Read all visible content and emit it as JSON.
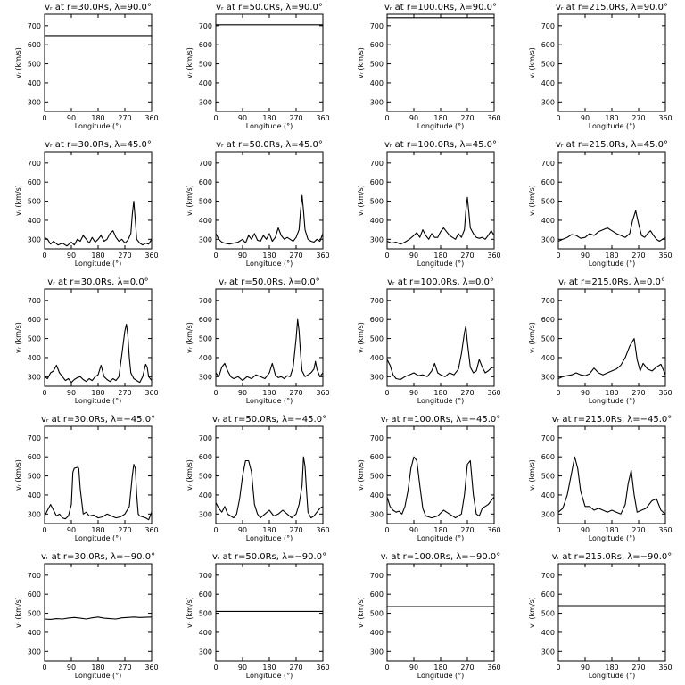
{
  "figure": {
    "x_ticks": [
      0,
      90,
      180,
      270,
      360
    ],
    "y_ticks": [
      300,
      400,
      500,
      600,
      700
    ],
    "xlabel": "Longitude (°)",
    "ylabel": "vᵣ (km/s)",
    "line_color": "#000000",
    "background": "#ffffff"
  },
  "chart_data": [
    {
      "type": "line",
      "title": "vᵣ at r=30.0Rs, λ=90.0°",
      "xlabel": "Longitude (°)",
      "ylabel": "vᵣ (km/s)",
      "xlim": [
        0,
        360
      ],
      "ylim": [
        250,
        760
      ],
      "x": [
        0,
        360
      ],
      "values": [
        648,
        648
      ]
    },
    {
      "type": "line",
      "title": "vᵣ at r=50.0Rs, λ=90.0°",
      "xlabel": "Longitude (°)",
      "ylabel": "vᵣ (km/s)",
      "xlim": [
        0,
        360
      ],
      "ylim": [
        250,
        760
      ],
      "x": [
        0,
        360
      ],
      "values": [
        705,
        705
      ]
    },
    {
      "type": "line",
      "title": "vᵣ at r=100.0Rs, λ=90.0°",
      "xlabel": "Longitude (°)",
      "ylabel": "vᵣ (km/s)",
      "xlim": [
        0,
        360
      ],
      "ylim": [
        250,
        760
      ],
      "x": [
        0,
        360
      ],
      "values": [
        742,
        742
      ]
    },
    {
      "type": "line",
      "title": "vᵣ at r=215.0Rs, λ=90.0°",
      "xlabel": "Longitude (°)",
      "ylabel": "vᵣ (km/s)",
      "xlim": [
        0,
        360
      ],
      "ylim": [
        250,
        760
      ],
      "x": [],
      "values": []
    },
    {
      "type": "line",
      "title": "vᵣ at r=30.0Rs, λ=45.0°",
      "xlabel": "Longitude (°)",
      "ylabel": "vᵣ (km/s)",
      "xlim": [
        0,
        360
      ],
      "ylim": [
        250,
        760
      ],
      "x": [
        0,
        10,
        20,
        30,
        45,
        60,
        75,
        90,
        100,
        110,
        120,
        130,
        140,
        150,
        160,
        170,
        180,
        190,
        200,
        210,
        220,
        230,
        240,
        250,
        260,
        270,
        280,
        290,
        295,
        300,
        305,
        310,
        320,
        330,
        340,
        350,
        360
      ],
      "values": [
        310,
        300,
        275,
        290,
        270,
        280,
        265,
        285,
        270,
        300,
        290,
        320,
        300,
        280,
        310,
        285,
        300,
        320,
        290,
        300,
        330,
        345,
        310,
        290,
        300,
        280,
        295,
        330,
        430,
        500,
        400,
        300,
        280,
        270,
        280,
        275,
        300
      ]
    },
    {
      "type": "line",
      "title": "vᵣ at r=50.0Rs, λ=45.0°",
      "xlabel": "Longitude (°)",
      "ylabel": "vᵣ (km/s)",
      "xlim": [
        0,
        360
      ],
      "ylim": [
        250,
        760
      ],
      "x": [
        0,
        10,
        20,
        30,
        45,
        60,
        75,
        90,
        100,
        110,
        120,
        130,
        140,
        150,
        160,
        170,
        180,
        190,
        200,
        210,
        220,
        230,
        240,
        250,
        260,
        270,
        280,
        285,
        290,
        295,
        300,
        310,
        320,
        330,
        340,
        350,
        360
      ],
      "values": [
        330,
        300,
        285,
        280,
        275,
        280,
        285,
        300,
        280,
        320,
        300,
        330,
        295,
        290,
        320,
        300,
        330,
        290,
        310,
        360,
        320,
        300,
        310,
        300,
        290,
        310,
        350,
        450,
        530,
        450,
        350,
        300,
        290,
        285,
        300,
        290,
        330
      ]
    },
    {
      "type": "line",
      "title": "vᵣ at r=100.0Rs, λ=45.0°",
      "xlabel": "Longitude (°)",
      "ylabel": "vᵣ (km/s)",
      "xlim": [
        0,
        360
      ],
      "ylim": [
        250,
        760
      ],
      "x": [
        0,
        15,
        30,
        45,
        60,
        75,
        90,
        100,
        110,
        120,
        130,
        140,
        150,
        160,
        170,
        180,
        190,
        200,
        210,
        220,
        230,
        240,
        250,
        260,
        265,
        270,
        275,
        280,
        290,
        300,
        310,
        320,
        330,
        340,
        350,
        360
      ],
      "values": [
        290,
        280,
        285,
        275,
        285,
        300,
        320,
        335,
        310,
        350,
        320,
        300,
        330,
        310,
        310,
        340,
        360,
        340,
        320,
        310,
        300,
        330,
        310,
        350,
        450,
        520,
        440,
        360,
        330,
        310,
        305,
        310,
        300,
        320,
        345,
        320
      ]
    },
    {
      "type": "line",
      "title": "vᵣ at r=215.0Rs, λ=45.0°",
      "xlabel": "Longitude (°)",
      "ylabel": "vᵣ (km/s)",
      "xlim": [
        0,
        360
      ],
      "ylim": [
        250,
        760
      ],
      "x": [
        0,
        15,
        30,
        45,
        60,
        75,
        90,
        105,
        120,
        135,
        150,
        165,
        180,
        195,
        210,
        225,
        240,
        250,
        260,
        270,
        280,
        290,
        300,
        310,
        320,
        330,
        340,
        350,
        360
      ],
      "values": [
        290,
        300,
        310,
        325,
        320,
        305,
        310,
        330,
        320,
        340,
        350,
        360,
        345,
        330,
        320,
        310,
        330,
        400,
        450,
        380,
        320,
        310,
        330,
        345,
        320,
        300,
        290,
        300,
        310
      ]
    },
    {
      "type": "line",
      "title": "vᵣ at r=30.0Rs, λ=0.0°",
      "xlabel": "Longitude (°)",
      "ylabel": "vᵣ (km/s)",
      "xlim": [
        0,
        360
      ],
      "ylim": [
        250,
        760
      ],
      "x": [
        0,
        10,
        20,
        30,
        40,
        50,
        60,
        70,
        80,
        90,
        100,
        110,
        120,
        130,
        140,
        150,
        160,
        170,
        180,
        190,
        200,
        210,
        220,
        230,
        240,
        250,
        260,
        270,
        275,
        280,
        285,
        290,
        300,
        310,
        320,
        330,
        340,
        345,
        350,
        360
      ],
      "values": [
        300,
        290,
        320,
        330,
        360,
        320,
        300,
        280,
        290,
        270,
        285,
        295,
        300,
        285,
        275,
        290,
        280,
        300,
        310,
        360,
        300,
        285,
        275,
        290,
        280,
        300,
        420,
        540,
        575,
        520,
        400,
        320,
        290,
        280,
        270,
        300,
        365,
        350,
        300,
        280
      ]
    },
    {
      "type": "line",
      "title": "vᵣ at r=50.0Rs, λ=0.0°",
      "xlabel": "Longitude (°)",
      "ylabel": "vᵣ (km/s)",
      "xlim": [
        0,
        360
      ],
      "ylim": [
        250,
        760
      ],
      "x": [
        0,
        10,
        20,
        30,
        40,
        50,
        60,
        75,
        90,
        105,
        120,
        135,
        150,
        165,
        180,
        190,
        200,
        210,
        220,
        230,
        240,
        250,
        260,
        270,
        275,
        280,
        285,
        290,
        300,
        310,
        320,
        330,
        335,
        340,
        350,
        360
      ],
      "values": [
        320,
        300,
        350,
        370,
        330,
        300,
        290,
        300,
        280,
        300,
        290,
        310,
        300,
        290,
        320,
        370,
        310,
        295,
        300,
        290,
        305,
        300,
        350,
        500,
        600,
        540,
        420,
        330,
        300,
        310,
        320,
        340,
        380,
        340,
        300,
        320
      ]
    },
    {
      "type": "line",
      "title": "vᵣ at r=100.0Rs, λ=0.0°",
      "xlabel": "Longitude (°)",
      "ylabel": "vᵣ (km/s)",
      "xlim": [
        0,
        360
      ],
      "ylim": [
        250,
        760
      ],
      "x": [
        0,
        10,
        20,
        30,
        45,
        60,
        75,
        90,
        105,
        120,
        135,
        150,
        160,
        170,
        180,
        195,
        210,
        225,
        240,
        250,
        260,
        265,
        270,
        280,
        290,
        300,
        310,
        320,
        330,
        340,
        350,
        360
      ],
      "values": [
        390,
        360,
        310,
        290,
        285,
        300,
        310,
        320,
        305,
        310,
        300,
        330,
        370,
        320,
        310,
        300,
        320,
        310,
        340,
        420,
        530,
        565,
        480,
        350,
        320,
        330,
        390,
        350,
        320,
        330,
        345,
        350
      ]
    },
    {
      "type": "line",
      "title": "vᵣ at r=215.0Rs, λ=0.0°",
      "xlabel": "Longitude (°)",
      "ylabel": "vᵣ (km/s)",
      "xlim": [
        0,
        360
      ],
      "ylim": [
        250,
        760
      ],
      "x": [
        0,
        15,
        30,
        45,
        60,
        75,
        90,
        105,
        120,
        135,
        150,
        165,
        180,
        195,
        210,
        225,
        240,
        255,
        265,
        275,
        285,
        300,
        315,
        330,
        345,
        360
      ],
      "values": [
        290,
        300,
        305,
        310,
        320,
        310,
        305,
        315,
        345,
        320,
        310,
        320,
        330,
        340,
        360,
        400,
        460,
        500,
        390,
        330,
        370,
        340,
        330,
        350,
        365,
        310
      ]
    },
    {
      "type": "line",
      "title": "vᵣ at r=30.0Rs, λ=−45.0°",
      "xlabel": "Longitude (°)",
      "ylabel": "vᵣ (km/s)",
      "xlim": [
        0,
        360
      ],
      "ylim": [
        250,
        760
      ],
      "x": [
        0,
        10,
        20,
        30,
        40,
        50,
        60,
        70,
        80,
        90,
        95,
        100,
        110,
        115,
        120,
        130,
        140,
        150,
        165,
        180,
        195,
        210,
        225,
        240,
        255,
        270,
        285,
        295,
        300,
        305,
        310,
        315,
        320,
        330,
        340,
        350,
        360
      ],
      "values": [
        290,
        320,
        350,
        320,
        290,
        300,
        280,
        275,
        290,
        350,
        520,
        540,
        545,
        540,
        430,
        300,
        310,
        290,
        295,
        280,
        285,
        300,
        290,
        280,
        285,
        300,
        340,
        500,
        560,
        540,
        400,
        300,
        290,
        285,
        280,
        270,
        310
      ]
    },
    {
      "type": "line",
      "title": "vᵣ at r=50.0Rs, λ=−45.0°",
      "xlabel": "Longitude (°)",
      "ylabel": "vᵣ (km/s)",
      "xlim": [
        0,
        360
      ],
      "ylim": [
        250,
        760
      ],
      "x": [
        0,
        10,
        20,
        30,
        40,
        50,
        60,
        70,
        80,
        90,
        100,
        110,
        120,
        130,
        140,
        150,
        165,
        180,
        195,
        210,
        225,
        240,
        255,
        270,
        280,
        290,
        295,
        300,
        305,
        310,
        320,
        330,
        340,
        350,
        360
      ],
      "values": [
        360,
        330,
        310,
        340,
        300,
        290,
        280,
        300,
        380,
        500,
        580,
        580,
        520,
        350,
        300,
        280,
        300,
        320,
        290,
        300,
        320,
        300,
        280,
        300,
        350,
        450,
        600,
        550,
        420,
        310,
        280,
        290,
        310,
        330,
        340
      ]
    },
    {
      "type": "line",
      "title": "vᵣ at r=100.0Rs, λ=−45.0°",
      "xlabel": "Longitude (°)",
      "ylabel": "vᵣ (km/s)",
      "xlim": [
        0,
        360
      ],
      "ylim": [
        250,
        760
      ],
      "x": [
        0,
        10,
        20,
        30,
        40,
        50,
        60,
        70,
        80,
        90,
        100,
        110,
        120,
        130,
        150,
        170,
        190,
        210,
        230,
        250,
        260,
        270,
        280,
        290,
        300,
        310,
        320,
        330,
        340,
        350,
        360
      ],
      "values": [
        390,
        340,
        320,
        310,
        315,
        300,
        340,
        420,
        540,
        600,
        580,
        450,
        330,
        290,
        280,
        290,
        320,
        300,
        280,
        300,
        400,
        560,
        580,
        400,
        300,
        290,
        330,
        340,
        350,
        370,
        390
      ]
    },
    {
      "type": "line",
      "title": "vᵣ at r=215.0Rs, λ=−45.0°",
      "xlabel": "Longitude (°)",
      "ylabel": "vᵣ (km/s)",
      "xlim": [
        0,
        360
      ],
      "ylim": [
        250,
        760
      ],
      "x": [
        0,
        15,
        30,
        45,
        55,
        65,
        75,
        90,
        105,
        120,
        135,
        150,
        165,
        180,
        195,
        210,
        225,
        235,
        245,
        255,
        265,
        280,
        295,
        315,
        330,
        345,
        360
      ],
      "values": [
        310,
        330,
        400,
        520,
        600,
        540,
        420,
        340,
        340,
        320,
        330,
        320,
        310,
        320,
        310,
        300,
        350,
        460,
        530,
        400,
        310,
        320,
        330,
        370,
        380,
        320,
        300
      ]
    },
    {
      "type": "line",
      "title": "vᵣ at r=30.0Rs, λ=−90.0°",
      "xlabel": "Longitude (°)",
      "ylabel": "vᵣ (km/s)",
      "xlim": [
        0,
        360
      ],
      "ylim": [
        250,
        760
      ],
      "x": [
        0,
        20,
        40,
        60,
        80,
        100,
        120,
        140,
        160,
        180,
        200,
        220,
        240,
        260,
        280,
        300,
        320,
        340,
        360
      ],
      "values": [
        470,
        468,
        472,
        470,
        475,
        478,
        474,
        470,
        476,
        480,
        474,
        472,
        470,
        476,
        478,
        480,
        478,
        479,
        480
      ]
    },
    {
      "type": "line",
      "title": "vᵣ at r=50.0Rs, λ=−90.0°",
      "xlabel": "Longitude (°)",
      "ylabel": "vᵣ (km/s)",
      "xlim": [
        0,
        360
      ],
      "ylim": [
        250,
        760
      ],
      "x": [
        0,
        360
      ],
      "values": [
        510,
        510
      ]
    },
    {
      "type": "line",
      "title": "vᵣ at r=100.0Rs, λ=−90.0°",
      "xlabel": "Longitude (°)",
      "ylabel": "vᵣ (km/s)",
      "xlim": [
        0,
        360
      ],
      "ylim": [
        250,
        760
      ],
      "x": [
        0,
        360
      ],
      "values": [
        535,
        535
      ]
    },
    {
      "type": "line",
      "title": "vᵣ at r=215.0Rs, λ=−90.0°",
      "xlabel": "Longitude (°)",
      "ylabel": "vᵣ (km/s)",
      "xlim": [
        0,
        360
      ],
      "ylim": [
        250,
        760
      ],
      "x": [
        0,
        360
      ],
      "values": [
        540,
        540
      ]
    }
  ]
}
